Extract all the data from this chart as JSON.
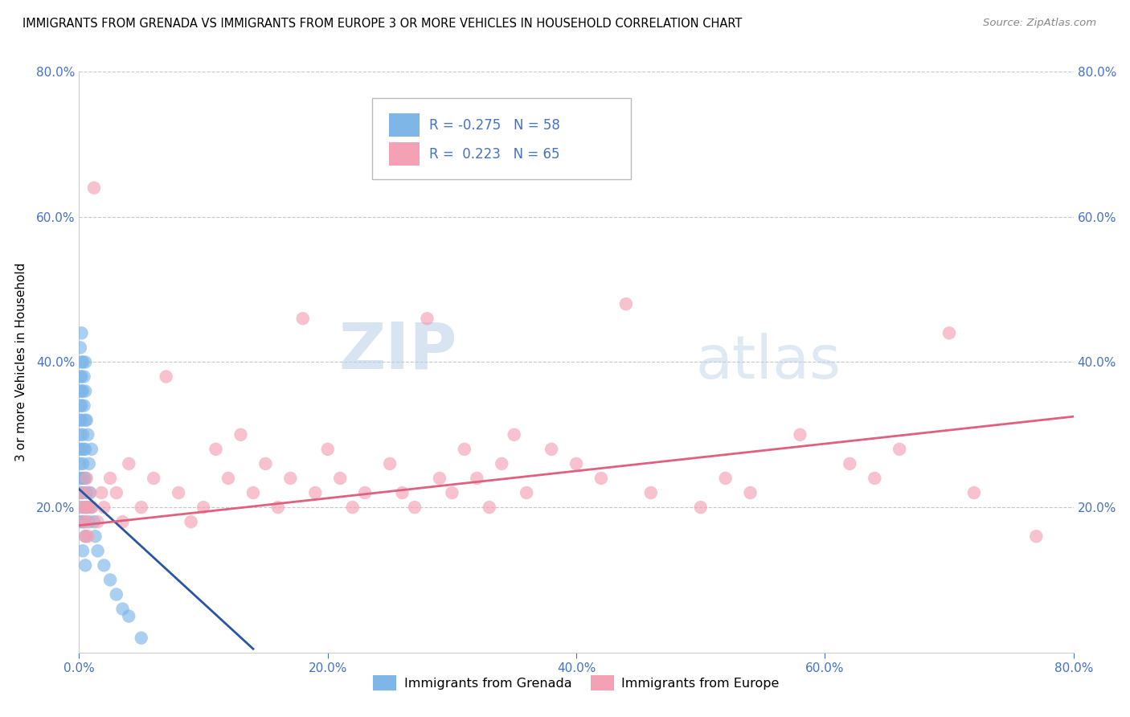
{
  "title": "IMMIGRANTS FROM GRENADA VS IMMIGRANTS FROM EUROPE 3 OR MORE VEHICLES IN HOUSEHOLD CORRELATION CHART",
  "source": "Source: ZipAtlas.com",
  "ylabel": "3 or more Vehicles in Household",
  "x_min": 0.0,
  "x_max": 0.8,
  "y_min": 0.0,
  "y_max": 0.8,
  "legend_grenada_r": "-0.275",
  "legend_grenada_n": "58",
  "legend_europe_r": "0.223",
  "legend_europe_n": "65",
  "grenada_color": "#7eb6e8",
  "europe_color": "#f4a0b5",
  "grenada_line_color": "#2a55a0",
  "europe_line_color": "#e06080",
  "background_color": "#ffffff",
  "grenada_line_x0": 0.0,
  "grenada_line_y0": 0.225,
  "grenada_line_x1": 0.14,
  "grenada_line_y1": 0.005,
  "europe_line_x0": 0.0,
  "europe_line_y0": 0.175,
  "europe_line_x1": 0.8,
  "europe_line_y1": 0.325
}
